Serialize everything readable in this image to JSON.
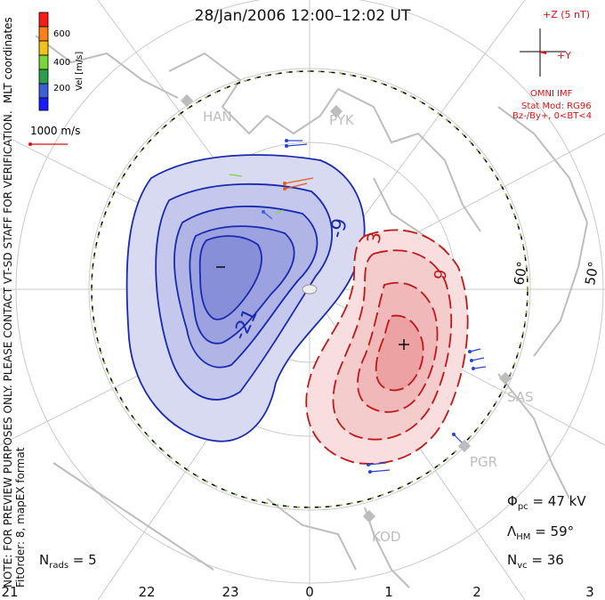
{
  "title": "28/Jan/2006 12:00–12:02 UT",
  "side_note_1": "NOTE: FOR PREVIEW PURPOSES ONLY. PLEASE CONTACT VT-SD STAFF FOR VERIFICATION.",
  "side_note_2": "FitOrder: 8, mapEX format",
  "coord_label": "MLT coordinates",
  "colorbar": {
    "label": "Vel [m/s]",
    "ticks": [
      "600",
      "400",
      "200"
    ],
    "colors": [
      "#ff1a1a",
      "#ff7f1a",
      "#f2c21a",
      "#7cd63a",
      "#2e9e4a",
      "#3a5fd9",
      "#1a1aff"
    ]
  },
  "scale_vector": "1000 m/s",
  "imf": {
    "z_label": "+Z (5 nT)",
    "y_label": "+Y",
    "model_title": "OMNI IMF",
    "model_stat": "Stat Mod: RG96",
    "model_cond": "Bz-/By+, 0<BT<4"
  },
  "stations": [
    "HAN",
    "PYK",
    "SAS",
    "PGR",
    "KOD"
  ],
  "latitudes": [
    "60°",
    "50°"
  ],
  "contours": {
    "negative_label": "-21",
    "negative_small": "-9",
    "positive_label": "3",
    "positive_small": "9"
  },
  "stats": {
    "phi_pc": "47 kV",
    "lambda_hm": "59°",
    "n_vc": "36",
    "n_rads": "5"
  },
  "mlt_ticks": [
    "21",
    "22",
    "23",
    "0",
    "1",
    "2",
    "3"
  ]
}
